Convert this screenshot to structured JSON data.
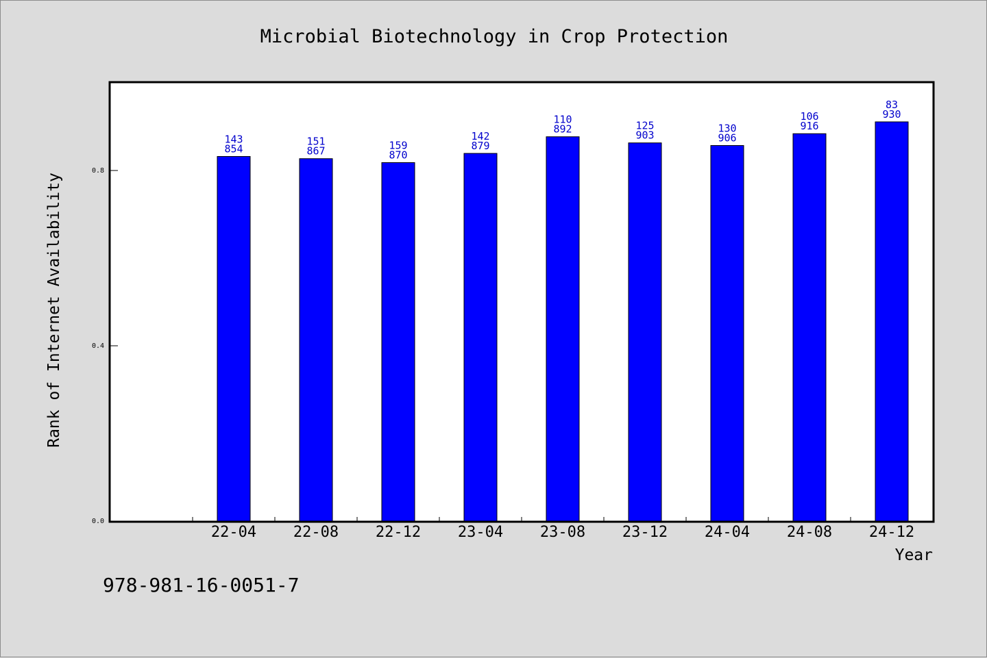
{
  "chart_data": {
    "type": "bar",
    "title": "Microbial Biotechnology in Crop Protection",
    "xlabel": "Year",
    "ylabel": "Rank of Internet Availability",
    "categories": [
      "22-04",
      "22-08",
      "22-12",
      "23-04",
      "23-08",
      "23-12",
      "24-04",
      "24-08",
      "24-12"
    ],
    "values": [
      0.832,
      0.827,
      0.818,
      0.839,
      0.877,
      0.863,
      0.857,
      0.884,
      0.911
    ],
    "label_top": [
      "143",
      "151",
      "159",
      "142",
      "110",
      "125",
      "130",
      "106",
      "83"
    ],
    "label_bottom": [
      "854",
      "867",
      "870",
      "879",
      "892",
      "903",
      "906",
      "916",
      "930"
    ],
    "ylim": [
      0,
      1.0
    ],
    "yticks": [
      0.0,
      0.4,
      0.8
    ],
    "ytick_labels": [
      "0.0",
      "0.4",
      "0.8"
    ],
    "bar_color": "#0000ff",
    "label_color": "#0000cc",
    "grid": false
  },
  "footer": {
    "isbn": "978-981-16-0051-7"
  }
}
